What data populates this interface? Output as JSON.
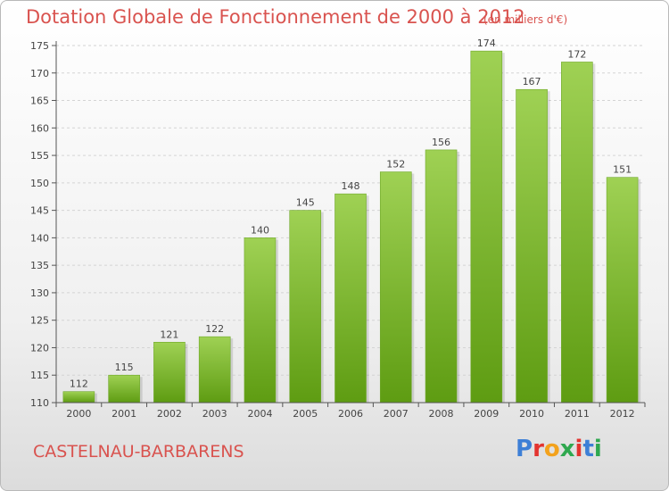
{
  "header": {
    "title": "Dotation Globale de Fonctionnement de 2000 à 2012",
    "unit": "(en milliers d'€)"
  },
  "footer": {
    "commune": "CASTELNAU-BARBARENS",
    "logo": "Proxiti"
  },
  "colors": {
    "title": "#d9534f",
    "bar_light": "#9fd154",
    "bar_dark": "#5e9c12",
    "axis": "#555555"
  },
  "chart_data": {
    "type": "bar",
    "categories": [
      "2000",
      "2001",
      "2002",
      "2003",
      "2004",
      "2005",
      "2006",
      "2007",
      "2008",
      "2009",
      "2010",
      "2011",
      "2012"
    ],
    "values": [
      112,
      115,
      121,
      122,
      140,
      145,
      148,
      152,
      156,
      174,
      167,
      172,
      151
    ],
    "data_labels": [
      "112",
      "115",
      "121",
      "122",
      "140",
      "145",
      "148",
      "152",
      "156",
      "174",
      "167",
      "172",
      "151"
    ],
    "title": "Dotation Globale de Fonctionnement de 2000 à 2012",
    "xlabel": "",
    "ylabel": "",
    "ylim": [
      110,
      175
    ],
    "yticks": [
      110,
      115,
      120,
      125,
      130,
      135,
      140,
      145,
      150,
      155,
      160,
      165,
      170,
      175
    ],
    "grid": true,
    "legend": "none"
  }
}
